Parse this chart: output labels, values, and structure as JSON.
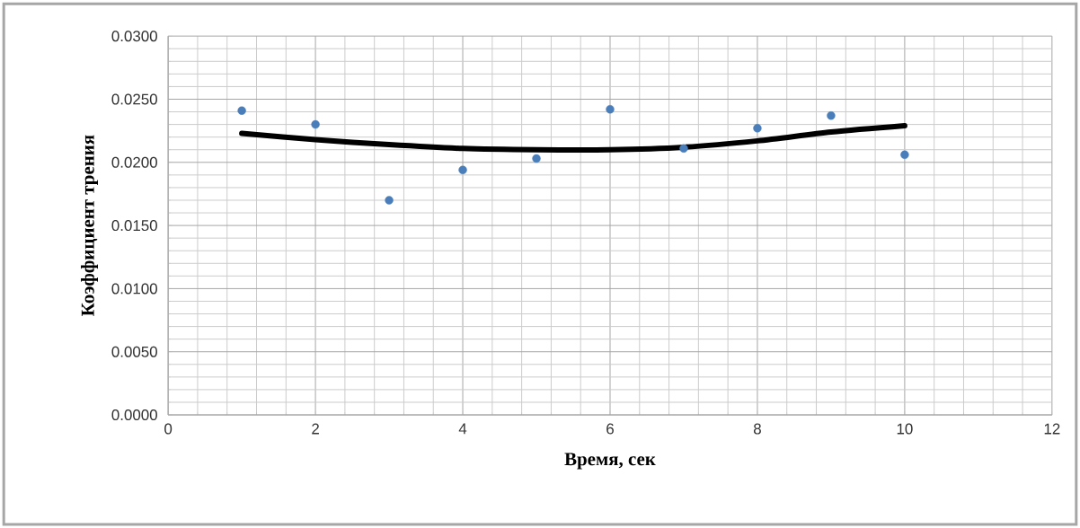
{
  "chart_data": {
    "type": "scatter",
    "xlabel": "Время, сек",
    "ylabel": "Коэффициент трения",
    "x": [
      1,
      2,
      3,
      4,
      5,
      6,
      7,
      8,
      9,
      10
    ],
    "series": [
      {
        "color": "#4a7ebb",
        "marker": "circle",
        "values": [
          0.0241,
          0.023,
          0.017,
          0.0194,
          0.0203,
          0.0242,
          0.0211,
          0.0227,
          0.0237,
          0.0206
        ]
      },
      {
        "type": "line",
        "color": "#000000",
        "marker": "none",
        "values": [
          0.0223,
          0.0218,
          0.0214,
          0.0211,
          0.021,
          0.021,
          0.0212,
          0.0217,
          0.0224,
          0.0229
        ]
      }
    ],
    "xlim": [
      0,
      12
    ],
    "xticks": [
      0,
      2,
      4,
      6,
      8,
      10,
      12
    ],
    "ylim": [
      0,
      0.03
    ],
    "yticks": [
      {
        "value": 0,
        "label": "0.0000"
      },
      {
        "value": 0.005,
        "label": "0.0050"
      },
      {
        "value": 0.01,
        "label": "0.0100"
      },
      {
        "value": 0.015,
        "label": "0.0150"
      },
      {
        "value": 0.02,
        "label": "0.0200"
      },
      {
        "value": 0.025,
        "label": "0.0250"
      },
      {
        "value": 0.03,
        "label": "0.0300"
      }
    ],
    "grid": true
  }
}
